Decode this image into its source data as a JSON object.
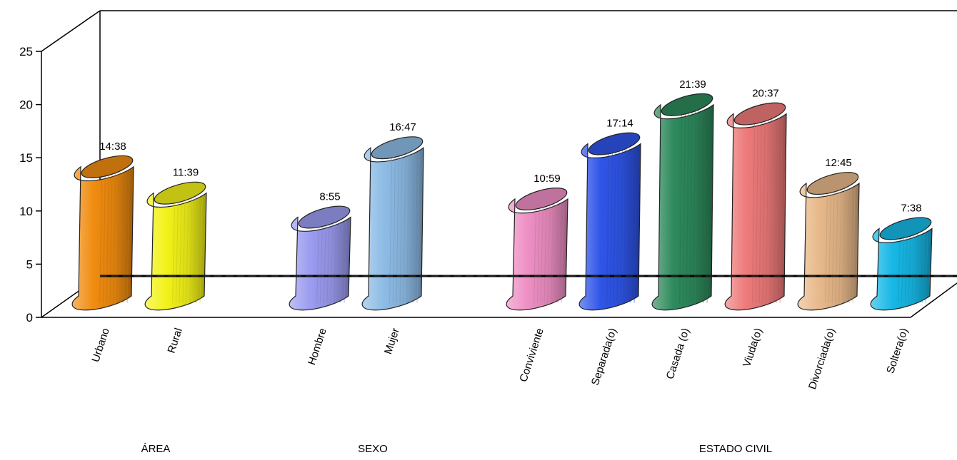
{
  "chart_data": {
    "type": "bar",
    "style": "3d-cylinder",
    "title": "",
    "xlabel": "",
    "ylabel": "",
    "ylim": [
      0,
      25
    ],
    "yticks": [
      "0",
      "5",
      "10",
      "15",
      "20",
      "25"
    ],
    "grid": false,
    "legend": "none",
    "groups": [
      {
        "name": "ÁREA",
        "bars": [
          {
            "category": "Urbano",
            "value": 14.63,
            "label": "14:38",
            "color": "#f08c10"
          },
          {
            "category": "Rural",
            "value": 11.65,
            "label": "11:39",
            "color": "#f2f219"
          }
        ]
      },
      {
        "name": "SEXO",
        "bars": [
          {
            "category": "Hombre",
            "value": 8.92,
            "label": "8:55",
            "color": "#9b9bf0"
          },
          {
            "category": "Mujer",
            "value": 16.78,
            "label": "16:47",
            "color": "#8ebce6"
          }
        ]
      },
      {
        "name": "ESTADO CIVIL",
        "bars": [
          {
            "category": "Conviviente",
            "value": 10.98,
            "label": "10:59",
            "color": "#ee8fc4"
          },
          {
            "category": "Separada(o)",
            "value": 17.23,
            "label": "17:14",
            "color": "#2f55e8"
          },
          {
            "category": "Casada (o)",
            "value": 21.65,
            "label": "21:39",
            "color": "#2e8a5c"
          },
          {
            "category": "Viuda(o)",
            "value": 20.62,
            "label": "20:37",
            "color": "#ee7a7a"
          },
          {
            "category": "Divorciada(o)",
            "value": 12.75,
            "label": "12:45",
            "color": "#e8b98a"
          },
          {
            "category": "Soltera(o)",
            "value": 7.63,
            "label": "7:38",
            "color": "#17b8e6"
          }
        ]
      }
    ]
  }
}
